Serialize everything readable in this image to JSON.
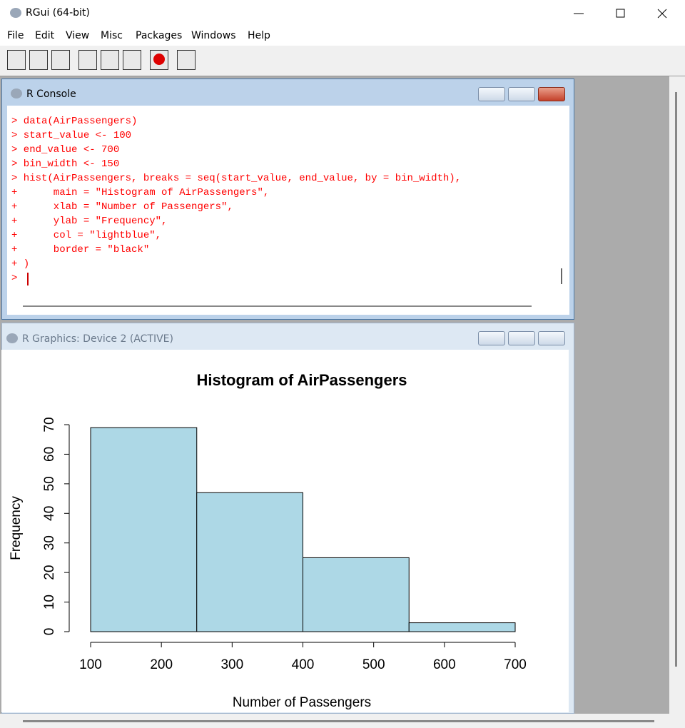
{
  "window": {
    "title": "RGui (64-bit)",
    "menu": [
      "File",
      "Edit",
      "View",
      "Misc",
      "Packages",
      "Windows",
      "Help"
    ]
  },
  "console": {
    "title": "R Console",
    "lines": [
      "> data(AirPassengers)",
      "> start_value <- 100",
      "> end_value <- 700",
      "> bin_width <- 150",
      "> hist(AirPassengers, breaks = seq(start_value, end_value, by = bin_width),",
      "+      main = \"Histogram of AirPassengers\",",
      "+      xlab = \"Number of Passengers\",",
      "+      ylab = \"Frequency\",",
      "+      col = \"lightblue\",",
      "+      border = \"black\"",
      "+ )",
      ">"
    ]
  },
  "graphics": {
    "title": "R Graphics: Device 2 (ACTIVE)"
  },
  "chart_data": {
    "type": "histogram",
    "title": "Histogram of AirPassengers",
    "x_label": "Number of Passengers",
    "y_label": "Frequency",
    "bins": [
      100,
      250,
      400,
      550,
      700
    ],
    "values": [
      69,
      47,
      25,
      3
    ],
    "color": "#add8e6",
    "edge_color": "#000000",
    "xlim": [
      100,
      700
    ],
    "xticks": [
      100,
      200,
      300,
      400,
      500,
      600,
      700
    ],
    "ylim": [
      0,
      70
    ],
    "yticks": [
      0,
      10,
      20,
      30,
      40,
      50,
      60,
      70
    ],
    "grid": false
  }
}
